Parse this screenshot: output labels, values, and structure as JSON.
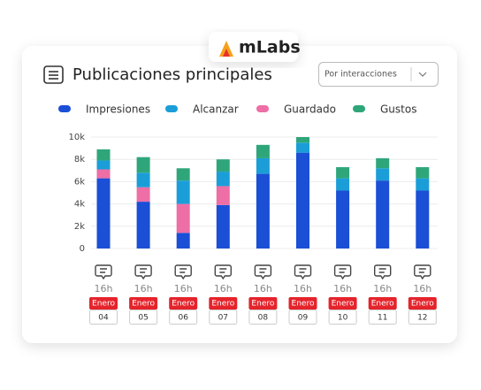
{
  "header": {
    "brand": "mLabs"
  },
  "dropdown": "Por interacciones",
  "chart_data": {
    "type": "stacked_bar",
    "title": "Publicaciones principales",
    "categories": [
      "04",
      "05",
      "06",
      "07",
      "08",
      "09",
      "10",
      "11",
      "12"
    ],
    "category_details": [
      {
        "time": "16h",
        "month": "Enero"
      },
      {
        "time": "16h",
        "month": "Enero"
      },
      {
        "time": "16h",
        "month": "Enero"
      },
      {
        "time": "16h",
        "month": "Enero"
      },
      {
        "time": "16h",
        "month": "Enero"
      },
      {
        "time": "16h",
        "month": "Enero"
      },
      {
        "time": "16h",
        "month": "Enero"
      },
      {
        "time": "16h",
        "month": "Enero"
      },
      {
        "time": "16h",
        "month": "Enero"
      }
    ],
    "series": [
      {
        "name": "Impresiones",
        "color": "#1a4fd6",
        "values": [
          6300,
          4200,
          1400,
          3900,
          6700,
          8600,
          5200,
          6100,
          5200
        ]
      },
      {
        "name": "Alcanzar",
        "color": "#1b9ed8",
        "values": [
          800,
          1300,
          2100,
          1300,
          1400,
          900,
          1100,
          1100,
          1100
        ]
      },
      {
        "name": "Guardado",
        "color": "#ee6ea6",
        "values": [
          800,
          1300,
          2600,
          1700,
          0,
          0,
          0,
          0,
          0
        ]
      },
      {
        "name": "Gustos",
        "color": "#2fa67a",
        "values": [
          1000,
          1400,
          1100,
          1100,
          1200,
          500,
          1000,
          900,
          1000
        ]
      }
    ],
    "stack_order": [
      0,
      2,
      1,
      3
    ],
    "ylim": [
      0,
      10000
    ],
    "yticks": [
      0,
      {
        "value": 2000,
        "label": "2k"
      },
      {
        "value": 4000,
        "label": "4k"
      },
      {
        "value": 6000,
        "label": "6k"
      },
      {
        "value": 8000,
        "label": "8k"
      },
      {
        "value": 10000,
        "label": "10k"
      }
    ],
    "grid": true
  }
}
